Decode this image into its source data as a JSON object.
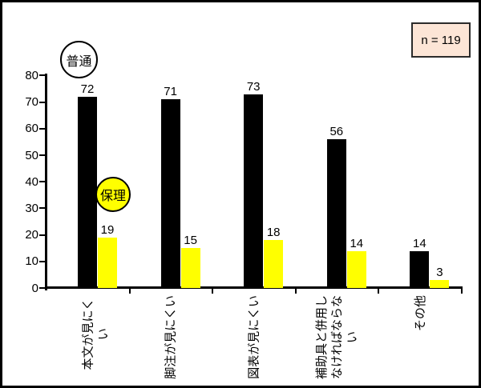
{
  "annotations": {
    "sample_size": "n = 119",
    "box_fill": "#fce5d6",
    "box_border": "#2b2b2b"
  },
  "chart_data": {
    "type": "bar",
    "title": "",
    "xlabel": "",
    "ylabel": "",
    "categories": [
      "本文が見にくい",
      "脚注が見にくい",
      "図表が見にくい",
      "補助具と併用し\nなければならな\nい",
      "その他"
    ],
    "series": [
      {
        "name": "普通",
        "color": "#000000",
        "label_fill": "#ffffff",
        "values": [
          72,
          71,
          73,
          56,
          14
        ]
      },
      {
        "name": "保理",
        "color": "#ffff00",
        "label_fill": "#ffff00",
        "values": [
          19,
          15,
          18,
          14,
          3
        ]
      }
    ],
    "ylim": [
      0,
      80
    ],
    "yticks": [
      0,
      10,
      20,
      30,
      40,
      50,
      60,
      70,
      80
    ],
    "grid": false,
    "value_labels": true,
    "legend_position": "floating circle callouts inside plot"
  }
}
